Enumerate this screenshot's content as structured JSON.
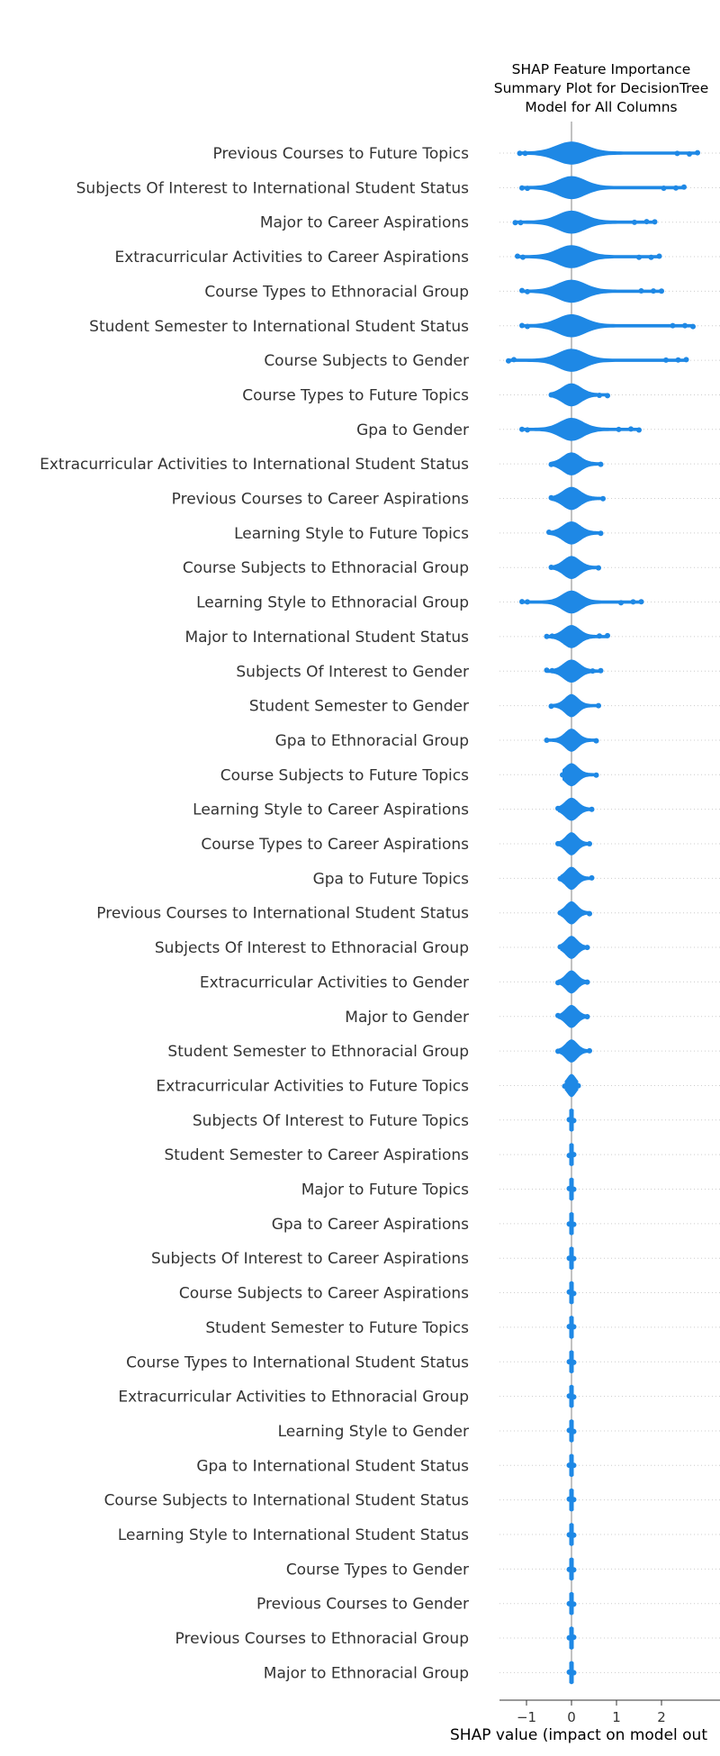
{
  "chart_data": {
    "type": "scatter",
    "title_lines": [
      "SHAP Feature Importance",
      "Summary Plot for DecisionTree",
      "Model for All Columns"
    ],
    "xlabel": "SHAP value (impact on model out",
    "ylabel": "",
    "xlim": [
      -1.6,
      3.0
    ],
    "xticks": [
      -1,
      0,
      1,
      2
    ],
    "xtick_labels": [
      "−1",
      "0",
      "1",
      "2"
    ],
    "grid": false,
    "legend": "none",
    "color": "#1e88e5",
    "features": [
      {
        "name": "Previous Courses to Future Topics",
        "min": -1.15,
        "max": 2.8,
        "core": 1.05
      },
      {
        "name": "Subjects Of Interest to International Student Status",
        "min": -1.1,
        "max": 2.5,
        "core": 0.95
      },
      {
        "name": "Major to Career Aspirations",
        "min": -1.25,
        "max": 1.85,
        "core": 0.95
      },
      {
        "name": "Extracurricular Activities to Career Aspirations",
        "min": -1.2,
        "max": 1.95,
        "core": 0.95
      },
      {
        "name": "Course Types to Ethnoracial Group",
        "min": -1.1,
        "max": 2.0,
        "core": 0.95
      },
      {
        "name": "Student Semester to International Student Status",
        "min": -1.1,
        "max": 2.7,
        "core": 0.95
      },
      {
        "name": "Course Subjects to Gender",
        "min": -1.4,
        "max": 2.55,
        "core": 0.9
      },
      {
        "name": "Course Types to Future Topics",
        "min": -0.45,
        "max": 0.8,
        "core": 0.65
      },
      {
        "name": "Gpa to Gender",
        "min": -1.1,
        "max": 1.5,
        "core": 0.8
      },
      {
        "name": "Extracurricular Activities to International Student Status",
        "min": -0.45,
        "max": 0.65,
        "core": 0.6
      },
      {
        "name": "Previous Courses to Career Aspirations",
        "min": -0.45,
        "max": 0.7,
        "core": 0.6
      },
      {
        "name": "Learning Style to Future Topics",
        "min": -0.5,
        "max": 0.65,
        "core": 0.6
      },
      {
        "name": "Course Subjects to Ethnoracial Group",
        "min": -0.45,
        "max": 0.6,
        "core": 0.55
      },
      {
        "name": "Learning Style to Ethnoracial Group",
        "min": -1.1,
        "max": 1.55,
        "core": 0.65
      },
      {
        "name": "Major to International Student Status",
        "min": -0.55,
        "max": 0.8,
        "core": 0.55
      },
      {
        "name": "Subjects Of Interest to Gender",
        "min": -0.55,
        "max": 0.65,
        "core": 0.55
      },
      {
        "name": "Student Semester to Gender",
        "min": -0.45,
        "max": 0.6,
        "core": 0.45
      },
      {
        "name": "Gpa to Ethnoracial Group",
        "min": -0.55,
        "max": 0.55,
        "core": 0.45
      },
      {
        "name": "Course Subjects to Future Topics",
        "min": -0.2,
        "max": 0.55,
        "core": 0.45
      },
      {
        "name": "Learning Style to Career Aspirations",
        "min": -0.3,
        "max": 0.45,
        "core": 0.45
      },
      {
        "name": "Course Types to Career Aspirations",
        "min": -0.3,
        "max": 0.4,
        "core": 0.4
      },
      {
        "name": "Gpa to Future Topics",
        "min": -0.25,
        "max": 0.45,
        "core": 0.4
      },
      {
        "name": "Previous Courses to International Student Status",
        "min": -0.25,
        "max": 0.4,
        "core": 0.4
      },
      {
        "name": "Subjects Of Interest to Ethnoracial Group",
        "min": -0.25,
        "max": 0.35,
        "core": 0.4
      },
      {
        "name": "Extracurricular Activities to Gender",
        "min": -0.3,
        "max": 0.35,
        "core": 0.4
      },
      {
        "name": "Major to Gender",
        "min": -0.3,
        "max": 0.35,
        "core": 0.4
      },
      {
        "name": "Student Semester to Ethnoracial Group",
        "min": -0.3,
        "max": 0.4,
        "core": 0.4
      },
      {
        "name": "Extracurricular Activities to Future Topics",
        "min": -0.15,
        "max": 0.15,
        "core": 0.3
      },
      {
        "name": "Subjects Of Interest to Future Topics",
        "min": -0.05,
        "max": 0.05,
        "core": 0.3
      },
      {
        "name": "Student Semester to Career Aspirations",
        "min": -0.05,
        "max": 0.05,
        "core": 0.3
      },
      {
        "name": "Major to Future Topics",
        "min": -0.05,
        "max": 0.05,
        "core": 0.3
      },
      {
        "name": "Gpa to Career Aspirations",
        "min": -0.05,
        "max": 0.05,
        "core": 0.3
      },
      {
        "name": "Subjects Of Interest to Career Aspirations",
        "min": -0.05,
        "max": 0.05,
        "core": 0.3
      },
      {
        "name": "Course Subjects to Career Aspirations",
        "min": -0.05,
        "max": 0.05,
        "core": 0.3
      },
      {
        "name": "Student Semester to Future Topics",
        "min": -0.05,
        "max": 0.05,
        "core": 0.3
      },
      {
        "name": "Course Types to International Student Status",
        "min": -0.05,
        "max": 0.05,
        "core": 0.3
      },
      {
        "name": "Extracurricular Activities to Ethnoracial Group",
        "min": -0.05,
        "max": 0.05,
        "core": 0.3
      },
      {
        "name": "Learning Style to Gender",
        "min": -0.05,
        "max": 0.05,
        "core": 0.3
      },
      {
        "name": "Gpa to International Student Status",
        "min": -0.05,
        "max": 0.05,
        "core": 0.3
      },
      {
        "name": "Course Subjects to International Student Status",
        "min": -0.05,
        "max": 0.05,
        "core": 0.3
      },
      {
        "name": "Learning Style to International Student Status",
        "min": -0.05,
        "max": 0.05,
        "core": 0.3
      },
      {
        "name": "Course Types to Gender",
        "min": -0.05,
        "max": 0.05,
        "core": 0.3
      },
      {
        "name": "Previous Courses to Gender",
        "min": -0.05,
        "max": 0.05,
        "core": 0.3
      },
      {
        "name": "Previous Courses to Ethnoracial Group",
        "min": -0.05,
        "max": 0.05,
        "core": 0.3
      },
      {
        "name": "Major to Ethnoracial Group",
        "min": -0.05,
        "max": 0.05,
        "core": 0.3
      }
    ]
  }
}
